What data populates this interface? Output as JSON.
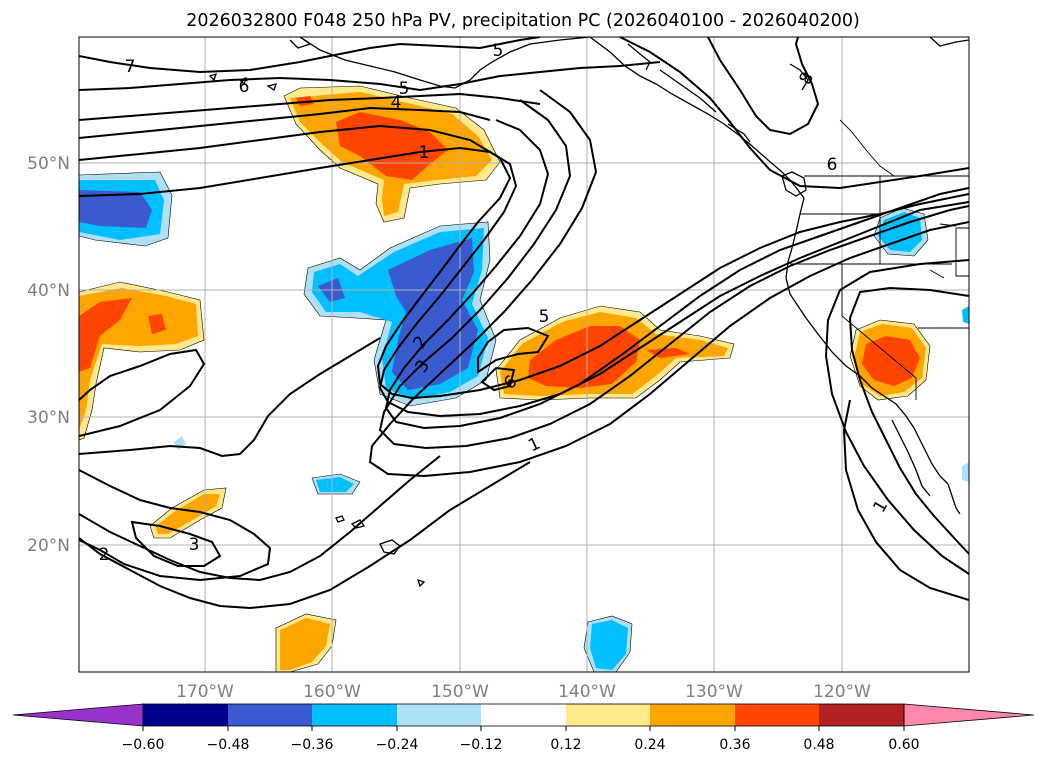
{
  "title": "2026032800 F048 250 hPa PV, precipitation PC (2026040100 - 2026040200)",
  "latitude_labels": [
    "50°N",
    "40°N",
    "30°N",
    "20°N"
  ],
  "longitude_labels": [
    "170°W",
    "160°W",
    "150°W",
    "140°W",
    "130°W",
    "120°W"
  ],
  "colorbar": {
    "tick_labels": [
      "−0.60",
      "−0.48",
      "−0.36",
      "−0.24",
      "−0.12",
      "0.12",
      "0.24",
      "0.36",
      "0.48",
      "0.60"
    ],
    "bin_colors": [
      "#9932cc",
      "#00008b",
      "#3a5bd0",
      "#00bfff",
      "#aee0f8",
      "#ffffff",
      "#ffe98a",
      "#ffa500",
      "#ff4500",
      "#b22222",
      "#ff88aa"
    ]
  },
  "pv_contour_labels": [
    "7",
    "6",
    "5",
    "5",
    "4",
    "1",
    "8",
    "6",
    "5",
    "2",
    "3",
    "6",
    "1",
    "1",
    "2",
    "3"
  ],
  "colors": {
    "neg_light": "#aee0f8",
    "neg_mid": "#00bfff",
    "neg_strong": "#3a5bd0",
    "pos_light": "#ffe98a",
    "pos_mid": "#ffa500",
    "pos_strong": "#ff4500",
    "grid": "#b0b0b0"
  }
}
